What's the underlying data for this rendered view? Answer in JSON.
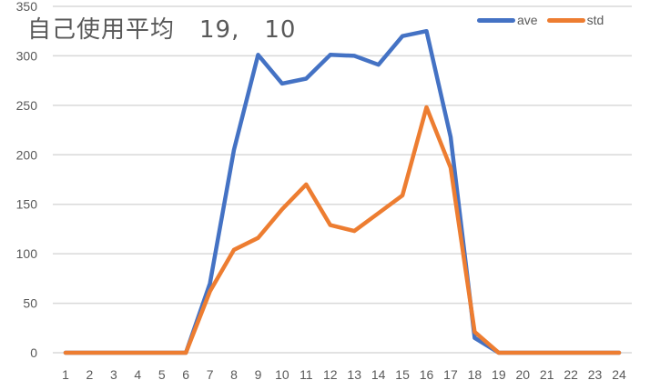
{
  "chart_data": {
    "type": "line",
    "title": "自己使用平均　19,　10",
    "xlabel": "",
    "ylabel": "",
    "categories": [
      "1",
      "2",
      "3",
      "4",
      "5",
      "6",
      "7",
      "8",
      "9",
      "10",
      "11",
      "12",
      "13",
      "14",
      "15",
      "16",
      "17",
      "18",
      "19",
      "20",
      "21",
      "22",
      "23",
      "24"
    ],
    "series": [
      {
        "name": "ave",
        "color": "#4472C4",
        "values": [
          0,
          0,
          0,
          0,
          0,
          0,
          70,
          205,
          301,
          272,
          277,
          301,
          300,
          291,
          320,
          325,
          218,
          15,
          0,
          0,
          0,
          0,
          0,
          0
        ]
      },
      {
        "name": "std",
        "color": "#ED7D31",
        "values": [
          0,
          0,
          0,
          0,
          0,
          0,
          62,
          104,
          116,
          145,
          170,
          129,
          123,
          141,
          159,
          248,
          187,
          21,
          0,
          0,
          0,
          0,
          0,
          0
        ]
      }
    ],
    "ylim": [
      0,
      350
    ],
    "yticks": [
      0,
      50,
      100,
      150,
      200,
      250,
      300,
      350
    ],
    "grid": true,
    "legend_position": "top-right"
  },
  "title": "自己使用平均　19,　10",
  "legend": [
    {
      "label": "ave",
      "color": "#4472C4"
    },
    {
      "label": "std",
      "color": "#ED7D31"
    }
  ]
}
